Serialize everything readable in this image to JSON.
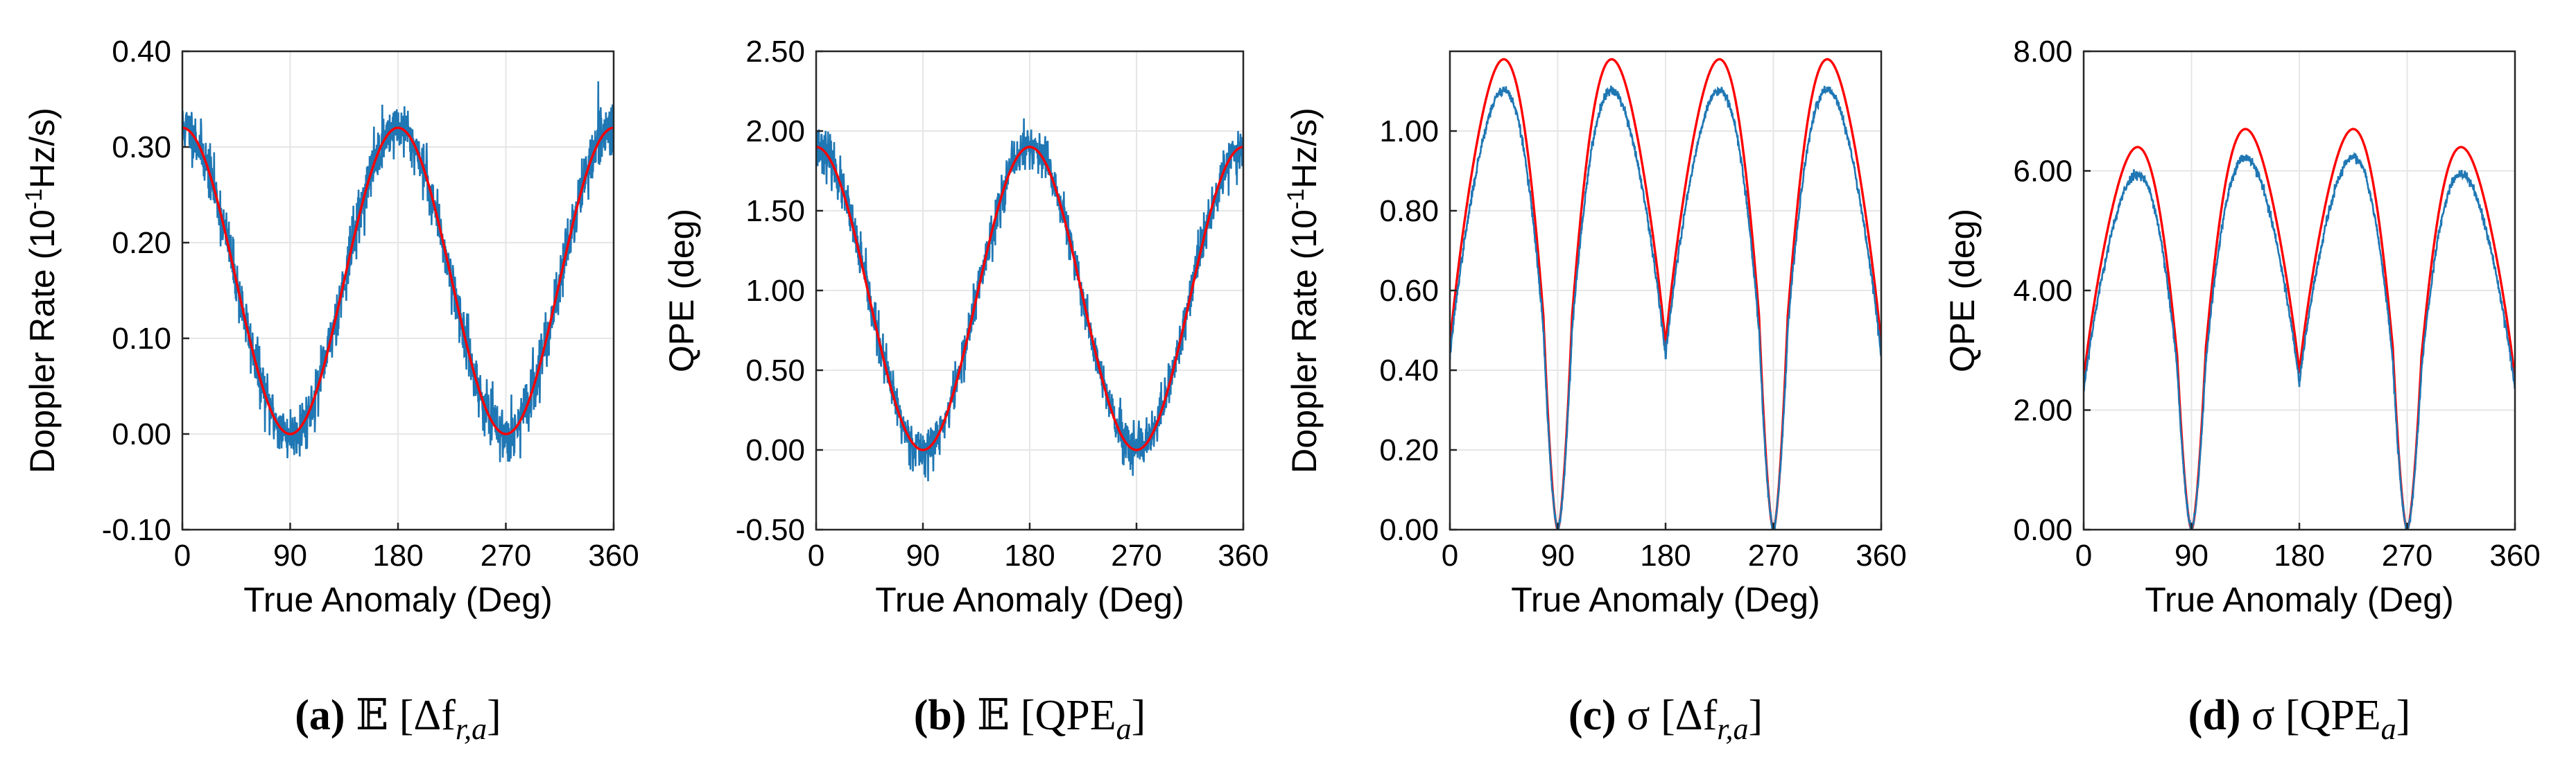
{
  "colors": {
    "simulated": "#1f77b4",
    "analytical": "#ff0000",
    "grid": "#e6e6e6",
    "axis": "#262626"
  },
  "chart_data": [
    {
      "id": "a",
      "type": "line",
      "caption_label": "(a)",
      "caption_expr": "𝔼 [Δf",
      "caption_sub": "r,a",
      "caption_close": "]",
      "xlabel": "True Anomaly (Deg)",
      "ylabel": "Doppler Rate (10",
      "ylabel_sup": "-1",
      "ylabel_tail": "Hz/s)",
      "xlim": [
        0,
        360
      ],
      "ylim": [
        -0.1,
        0.4
      ],
      "xticks": [
        0,
        90,
        180,
        270,
        360
      ],
      "yticks": [
        -0.1,
        0.0,
        0.1,
        0.2,
        0.3,
        0.4
      ],
      "xtick_labels": [
        "0",
        "90",
        "180",
        "270",
        "360"
      ],
      "ytick_labels": [
        "-0.10",
        "0.00",
        "0.10",
        "0.20",
        "0.30",
        "0.40"
      ],
      "grid": true,
      "series": [
        {
          "kind": "noisy",
          "color": "#1f77b4",
          "model": "cos2",
          "params": {
            "mean": 0.16,
            "amp": 0.16
          },
          "noise": 0.014,
          "noise_mode": "abs",
          "seed": 11
        },
        {
          "kind": "smooth",
          "color": "#ff0000",
          "model": "cos2",
          "params": {
            "mean": 0.16,
            "amp": 0.16
          }
        }
      ]
    },
    {
      "id": "b",
      "type": "line",
      "caption_label": "(b)",
      "caption_expr": "𝔼 [QPE",
      "caption_sub": "a",
      "caption_close": "]",
      "xlabel": "True Anomaly (Deg)",
      "ylabel": "QPE (deg)",
      "ylabel_sup": "",
      "ylabel_tail": "",
      "xlim": [
        0,
        360
      ],
      "ylim": [
        -0.5,
        2.5
      ],
      "xticks": [
        0,
        90,
        180,
        270,
        360
      ],
      "yticks": [
        -0.5,
        0.0,
        0.5,
        1.0,
        1.5,
        2.0,
        2.5
      ],
      "xtick_labels": [
        "0",
        "90",
        "180",
        "270",
        "360"
      ],
      "ytick_labels": [
        "-0.50",
        "0.00",
        "0.50",
        "1.00",
        "1.50",
        "2.00",
        "2.50"
      ],
      "grid": true,
      "series": [
        {
          "kind": "noisy",
          "color": "#1f77b4",
          "model": "cos2",
          "params": {
            "mean": 0.95,
            "amp": 0.95
          },
          "noise": 0.07,
          "noise_mode": "abs",
          "seed": 23
        },
        {
          "kind": "smooth",
          "color": "#ff0000",
          "model": "cos2",
          "params": {
            "mean": 0.95,
            "amp": 0.95
          }
        }
      ]
    },
    {
      "id": "c",
      "type": "line",
      "caption_label": "(c)",
      "caption_expr": "σ [Δf",
      "caption_sub": "r,a",
      "caption_close": "]",
      "xlabel": "True Anomaly (Deg)",
      "ylabel": "Doppler Rate (10",
      "ylabel_sup": "-1",
      "ylabel_tail": "Hz/s)",
      "xlim": [
        0,
        360
      ],
      "ylim": [
        0.0,
        1.2
      ],
      "xticks": [
        0,
        90,
        180,
        270,
        360
      ],
      "yticks": [
        0.0,
        0.2,
        0.4,
        0.6,
        0.8,
        1.0
      ],
      "xtick_labels": [
        "0",
        "90",
        "180",
        "270",
        "360"
      ],
      "ytick_labels": [
        "0.00",
        "0.20",
        "0.40",
        "0.60",
        "0.80",
        "1.00"
      ],
      "grid": true,
      "series": [
        {
          "kind": "smooth",
          "color": "#ff0000",
          "model": "bump",
          "params": {
            "k": 1.18,
            "w": 0.95,
            "p": 2.2,
            "amp": 0.0,
            "base": 0.0
          }
        },
        {
          "kind": "noisy",
          "color": "#1f77b4",
          "model": "bump",
          "params": {
            "k": 1.18,
            "w": 0.95,
            "p": 2.2,
            "amp": 0.0,
            "base": 0.0,
            "scale": 0.935,
            "lift": 0.03
          },
          "noise": 0.006,
          "noise_mode": "abs",
          "seed": 37
        }
      ]
    },
    {
      "id": "d",
      "type": "line",
      "caption_label": "(d)",
      "caption_expr": "σ [QPE",
      "caption_sub": "a",
      "caption_close": "]",
      "xlabel": "True Anomaly (Deg)",
      "ylabel": "QPE (deg)",
      "ylabel_sup": "",
      "ylabel_tail": "",
      "xlim": [
        0,
        360
      ],
      "ylim": [
        0.0,
        8.0
      ],
      "xticks": [
        0,
        90,
        180,
        270,
        360
      ],
      "yticks": [
        0.0,
        2.0,
        4.0,
        6.0,
        8.0
      ],
      "xtick_labels": [
        "0",
        "90",
        "180",
        "270",
        "360"
      ],
      "ytick_labels": [
        "0.00",
        "2.00",
        "4.00",
        "6.00",
        "8.00"
      ],
      "grid": true,
      "series": [
        {
          "kind": "smooth",
          "color": "#ff0000",
          "model": "bump",
          "params": {
            "k": 6.7,
            "w": 0.95,
            "p": 2.2,
            "amp": 0.35,
            "base": 0.0
          }
        },
        {
          "kind": "noisy",
          "color": "#1f77b4",
          "model": "bump",
          "params": {
            "k": 6.7,
            "w": 0.95,
            "p": 2.2,
            "amp": 0.35,
            "base": 0.0,
            "scale": 0.93,
            "lift": 0.15
          },
          "noise": 0.04,
          "noise_mode": "abs",
          "seed": 53
        }
      ]
    }
  ]
}
